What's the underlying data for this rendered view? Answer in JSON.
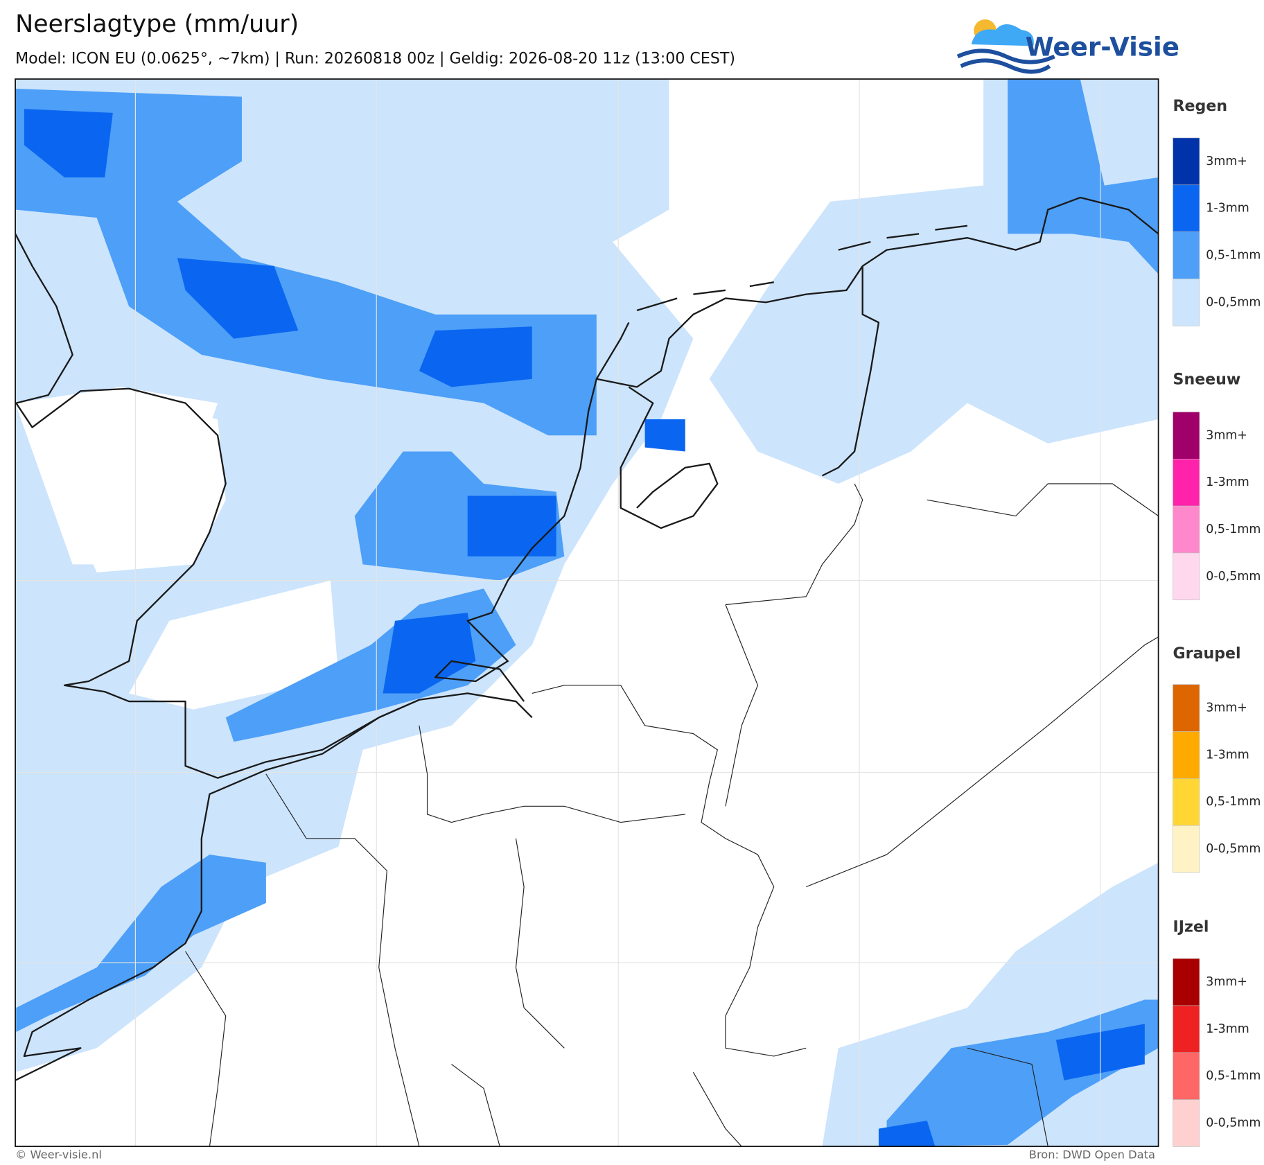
{
  "header": {
    "title": "Neerslagtype (mm/uur)",
    "subtitle": "Model: ICON EU (0.0625°, ~7km)  |  Run: 20260818 00z  |  Geldig: 2026-08-20 11z (13:00 CEST)",
    "logo": "Weer-Visie"
  },
  "legend": [
    {
      "title": "Regen",
      "items": [
        {
          "label": "3mm+",
          "color": "#0033aa"
        },
        {
          "label": "1-3mm",
          "color": "#0a66f0"
        },
        {
          "label": "0,5-1mm",
          "color": "#4d9ff8"
        },
        {
          "label": "0-0,5mm",
          "color": "#cce4fc"
        }
      ]
    },
    {
      "title": "Sneeuw",
      "items": [
        {
          "label": "3mm+",
          "color": "#a0006a"
        },
        {
          "label": "1-3mm",
          "color": "#ff22aa"
        },
        {
          "label": "0,5-1mm",
          "color": "#ff88cc"
        },
        {
          "label": "0-0,5mm",
          "color": "#ffd8ee"
        }
      ]
    },
    {
      "title": "Graupel",
      "items": [
        {
          "label": "3mm+",
          "color": "#dd6600"
        },
        {
          "label": "1-3mm",
          "color": "#ffaa00"
        },
        {
          "label": "0,5-1mm",
          "color": "#ffd633"
        },
        {
          "label": "0-0,5mm",
          "color": "#fff2c4"
        }
      ]
    },
    {
      "title": "IJzel",
      "items": [
        {
          "label": "3mm+",
          "color": "#a80000"
        },
        {
          "label": "1-3mm",
          "color": "#ee2222"
        },
        {
          "label": "0,5-1mm",
          "color": "#ff6666"
        },
        {
          "label": "0-0,5mm",
          "color": "#ffd0d0"
        }
      ]
    }
  ],
  "footer": {
    "left": "© Weer-visie.nl",
    "right": "Bron: DWD Open Data"
  }
}
